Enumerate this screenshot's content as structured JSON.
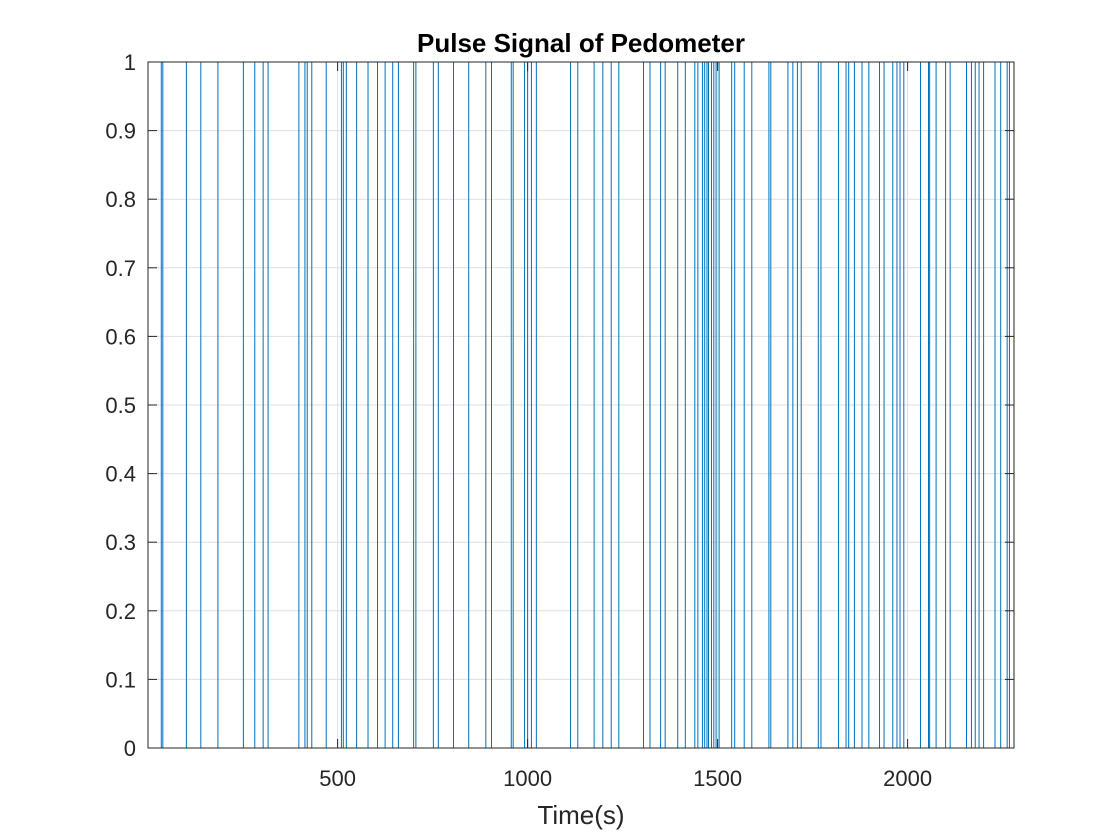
{
  "chart_data": {
    "type": "line",
    "title": "Pulse Signal of Pedometer",
    "xlabel": "Time(s)",
    "ylabel": "",
    "xlim": [
      1,
      2280
    ],
    "ylim": [
      0,
      1
    ],
    "xticks": [
      500,
      1000,
      1500,
      2000
    ],
    "yticks": [
      0,
      0.1,
      0.2,
      0.3,
      0.4,
      0.5,
      0.6,
      0.7,
      0.8,
      0.9,
      1
    ],
    "grid": true,
    "legend": "none",
    "series": [
      {
        "color": "#0072BD",
        "pulses_high": [
          [
            36,
            40
          ],
          [
            102,
            140
          ],
          [
            185,
            252
          ],
          [
            282,
            304
          ],
          [
            317,
            398
          ],
          [
            414,
            420
          ],
          [
            432,
            470
          ],
          [
            510,
            515
          ],
          [
            523,
            550
          ],
          [
            580,
            605
          ],
          [
            625,
            645
          ],
          [
            660,
            700
          ],
          [
            706,
            752
          ],
          [
            765,
            805
          ],
          [
            845,
            890
          ],
          [
            905,
            957
          ],
          [
            962,
            992
          ],
          [
            1000,
            1010
          ],
          [
            1023,
            1113
          ],
          [
            1132,
            1175
          ],
          [
            1198,
            1220
          ],
          [
            1240,
            1305
          ],
          [
            1322,
            1350
          ],
          [
            1362,
            1395
          ],
          [
            1415,
            1440
          ],
          [
            1448,
            1460
          ],
          [
            1466,
            1472
          ],
          [
            1476,
            1484
          ],
          [
            1490,
            1496
          ],
          [
            1504,
            1537
          ],
          [
            1545,
            1570
          ],
          [
            1590,
            1635
          ],
          [
            1640,
            1685
          ],
          [
            1698,
            1710
          ],
          [
            1720,
            1765
          ],
          [
            1772,
            1818
          ],
          [
            1838,
            1845
          ],
          [
            1860,
            1880
          ],
          [
            1898,
            1926
          ],
          [
            1938,
            1961
          ],
          [
            1972,
            1980
          ],
          [
            1990,
            2034
          ],
          [
            2055,
            2058
          ],
          [
            2075,
            2100
          ],
          [
            2112,
            2155
          ],
          [
            2168,
            2178
          ],
          [
            2188,
            2200
          ],
          [
            2230,
            2245
          ],
          [
            2262,
            2268
          ]
        ]
      }
    ]
  }
}
